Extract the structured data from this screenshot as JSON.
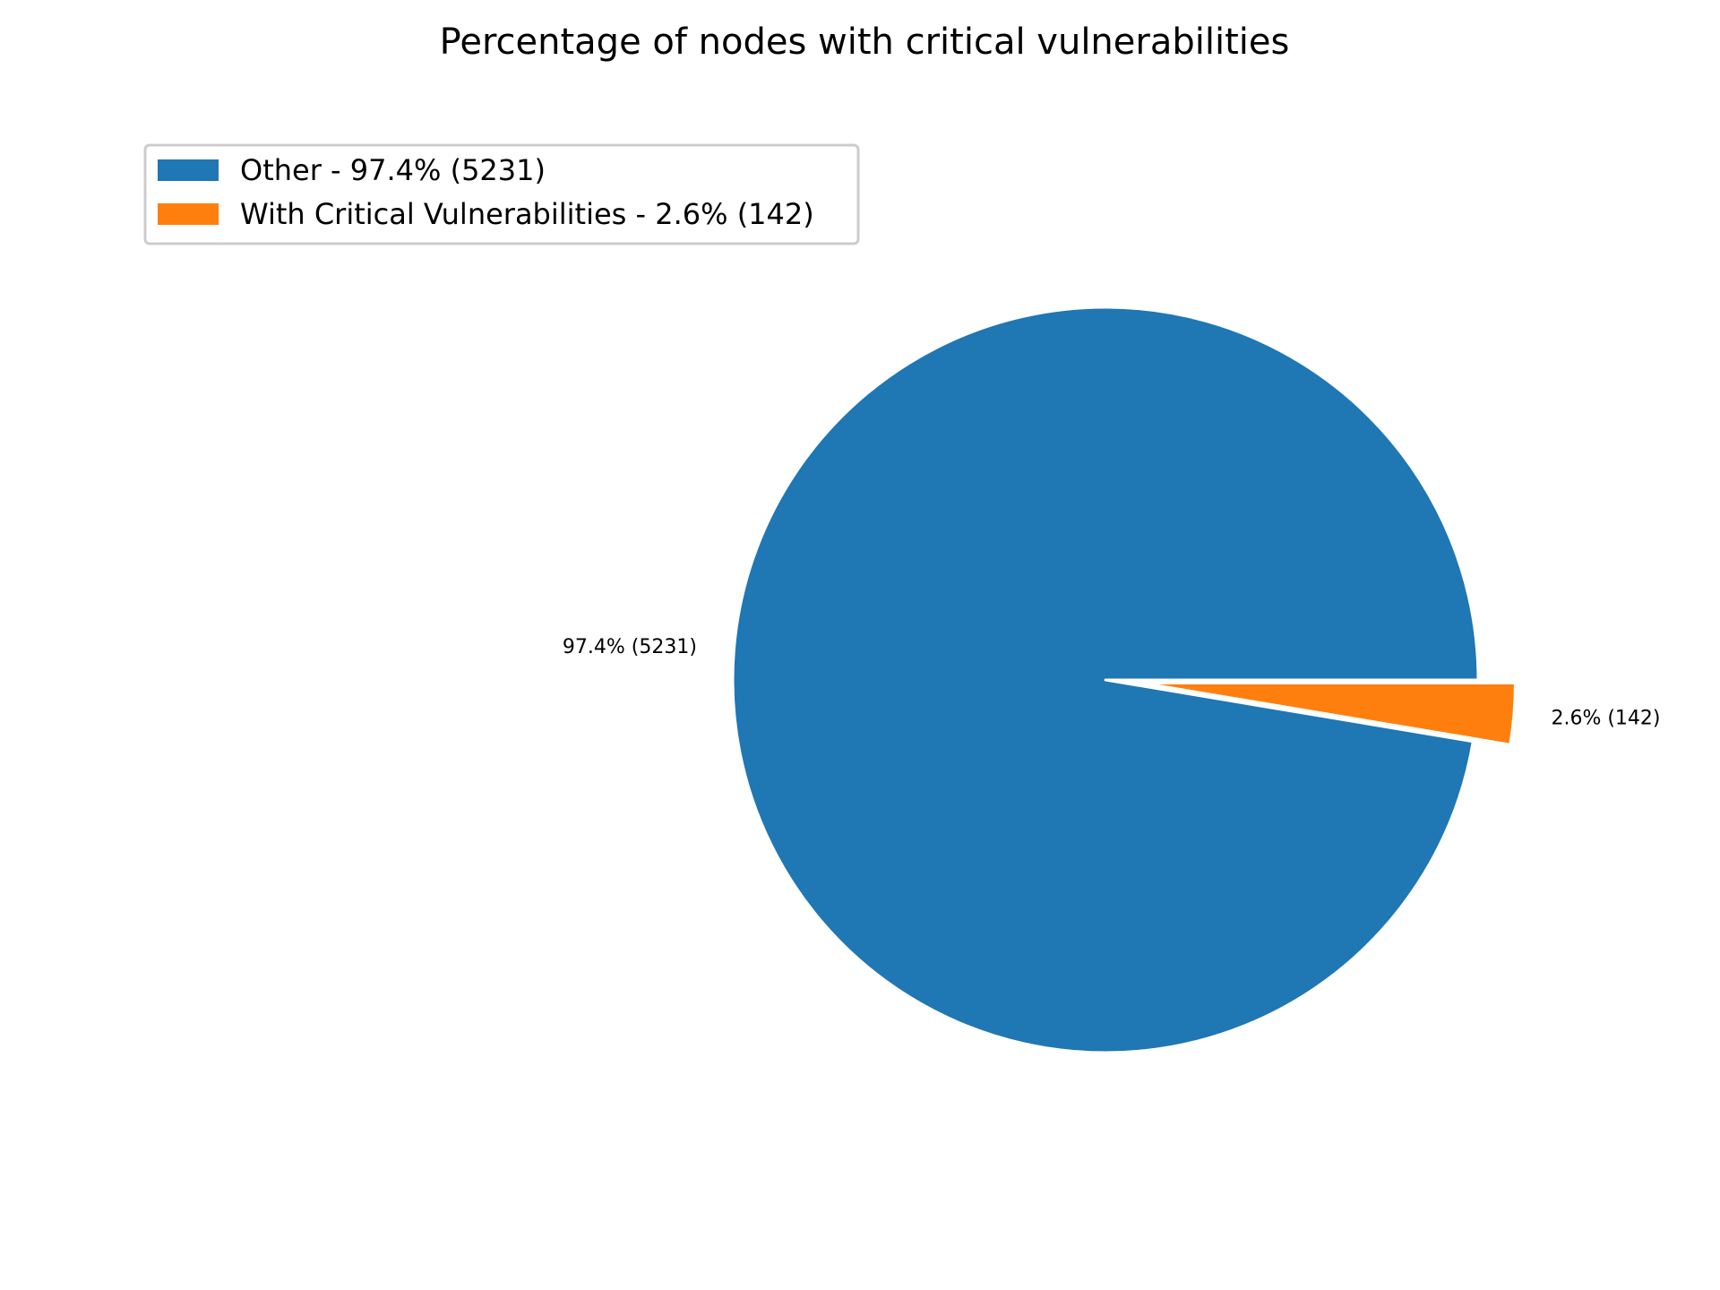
{
  "chart_data": {
    "type": "pie",
    "title": "Percentage of nodes with critical vulnerabilities",
    "legend_position": "top-left",
    "slices": [
      {
        "label": "Other",
        "value": 5231,
        "percent": 97.4,
        "color": "#1f77b4",
        "exploded": false,
        "legend_label": "Other - 97.4% (5231)",
        "data_label": "97.4% (5231)"
      },
      {
        "label": "With Critical Vulnerabilities",
        "value": 142,
        "percent": 2.6,
        "color": "#ff7f0e",
        "exploded": true,
        "legend_label": "With Critical Vulnerabilities - 2.6% (142)",
        "data_label": "2.6% (142)"
      }
    ]
  }
}
